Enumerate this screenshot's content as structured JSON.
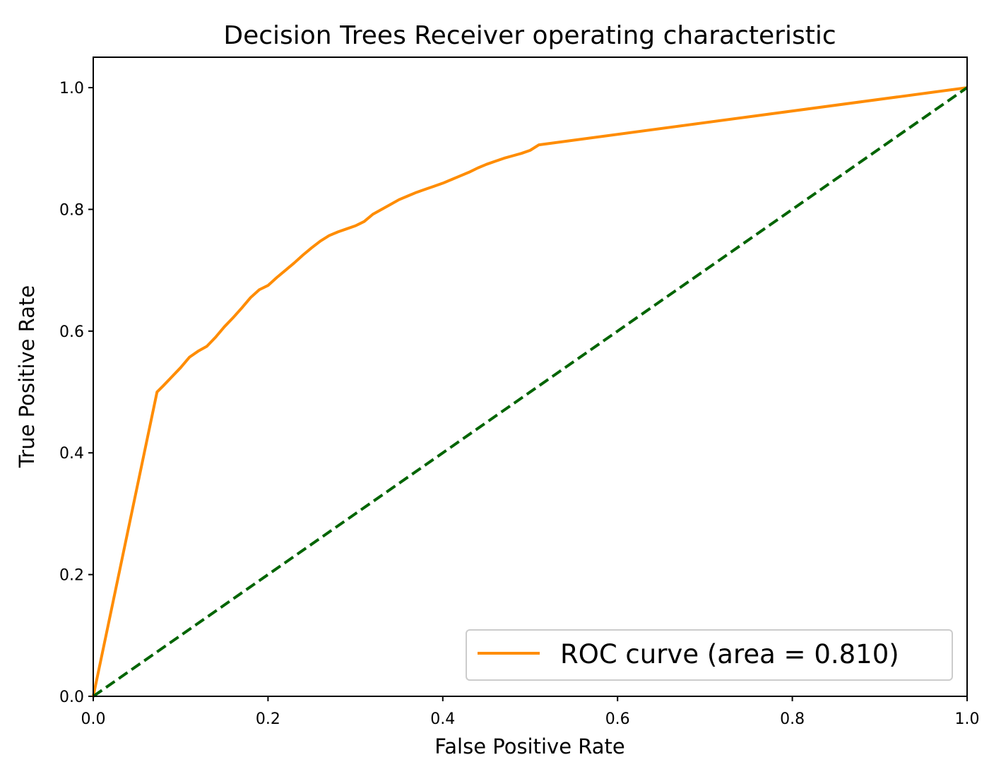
{
  "chart_data": {
    "type": "line",
    "title": "Decision Trees Receiver operating characteristic",
    "xlabel": "False Positive Rate",
    "ylabel": "True Positive Rate",
    "xlim": [
      0.0,
      1.0
    ],
    "ylim": [
      0.0,
      1.05
    ],
    "xticks": [
      0.0,
      0.2,
      0.4,
      0.6,
      0.8,
      1.0
    ],
    "xtick_labels": [
      "0.0",
      "0.2",
      "0.4",
      "0.6",
      "0.8",
      "1.0"
    ],
    "yticks": [
      0.0,
      0.2,
      0.4,
      0.6,
      0.8,
      1.0
    ],
    "ytick_labels": [
      "0.0",
      "0.2",
      "0.4",
      "0.6",
      "0.8",
      "1.0"
    ],
    "grid": false,
    "legend_position": "lower right",
    "series": [
      {
        "name": "ROC curve (area = 0.810)",
        "color": "#ff8c00",
        "style": "solid",
        "x": [
          0.0,
          0.073,
          0.08,
          0.09,
          0.1,
          0.11,
          0.12,
          0.13,
          0.14,
          0.15,
          0.16,
          0.17,
          0.18,
          0.19,
          0.2,
          0.21,
          0.22,
          0.23,
          0.24,
          0.25,
          0.26,
          0.27,
          0.28,
          0.29,
          0.3,
          0.31,
          0.32,
          0.33,
          0.34,
          0.35,
          0.36,
          0.37,
          0.38,
          0.39,
          0.4,
          0.41,
          0.42,
          0.43,
          0.44,
          0.45,
          0.46,
          0.47,
          0.48,
          0.49,
          0.5,
          0.51,
          1.0
        ],
        "y": [
          0.0,
          0.5,
          0.51,
          0.525,
          0.54,
          0.557,
          0.567,
          0.575,
          0.59,
          0.607,
          0.622,
          0.638,
          0.655,
          0.668,
          0.675,
          0.688,
          0.7,
          0.712,
          0.725,
          0.737,
          0.748,
          0.757,
          0.763,
          0.768,
          0.773,
          0.78,
          0.792,
          0.8,
          0.808,
          0.816,
          0.822,
          0.828,
          0.833,
          0.838,
          0.843,
          0.849,
          0.855,
          0.861,
          0.868,
          0.874,
          0.879,
          0.884,
          0.888,
          0.892,
          0.897,
          0.906,
          1.0
        ]
      },
      {
        "name": "",
        "color": "#006400",
        "style": "dashed",
        "x": [
          0.0,
          1.0
        ],
        "y": [
          0.0,
          1.0
        ]
      }
    ]
  }
}
